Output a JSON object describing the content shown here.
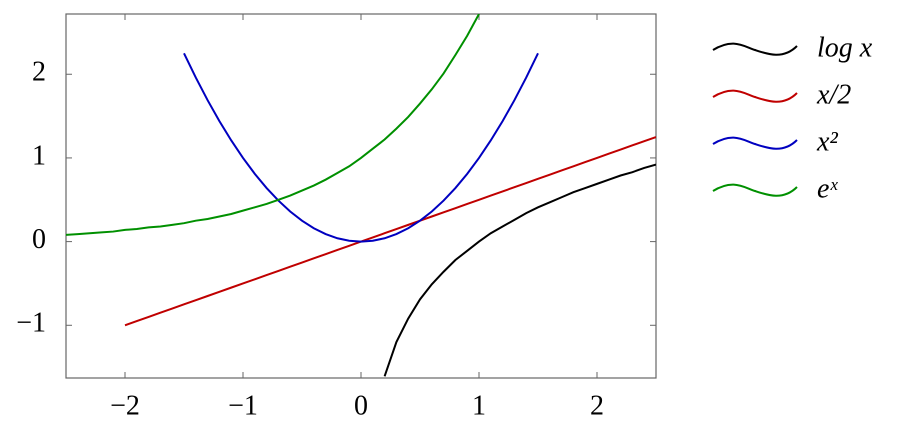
{
  "chart_data": {
    "type": "line",
    "x": [
      -2.5,
      -2.4,
      -2.3,
      -2.2,
      -2.1,
      -2.0,
      -1.9,
      -1.8,
      -1.7,
      -1.6,
      -1.5,
      -1.4,
      -1.3,
      -1.2,
      -1.1,
      -1.0,
      -0.9,
      -0.8,
      -0.7,
      -0.6,
      -0.5,
      -0.4,
      -0.3,
      -0.2,
      -0.1,
      0,
      0.1,
      0.2,
      0.3,
      0.4,
      0.5,
      0.6,
      0.7,
      0.8,
      0.9,
      1.0,
      1.1,
      1.2,
      1.3,
      1.4,
      1.5,
      1.6,
      1.7,
      1.8,
      1.9,
      2.0,
      2.1,
      2.2,
      2.3,
      2.4,
      2.5
    ],
    "series": [
      {
        "name": "log x",
        "color": "#000000",
        "values": [
          null,
          null,
          null,
          null,
          null,
          null,
          null,
          null,
          null,
          null,
          null,
          null,
          null,
          null,
          null,
          null,
          null,
          null,
          null,
          null,
          null,
          null,
          null,
          null,
          null,
          null,
          null,
          -1.61,
          -1.2,
          -0.92,
          -0.69,
          -0.51,
          -0.36,
          -0.22,
          -0.11,
          0,
          0.1,
          0.18,
          0.26,
          0.34,
          0.41,
          0.47,
          0.53,
          0.59,
          0.64,
          0.69,
          0.74,
          0.79,
          0.83,
          0.88,
          0.92
        ]
      },
      {
        "name": "x/2",
        "color": "#c00000",
        "values": [
          null,
          null,
          null,
          null,
          null,
          -1,
          -0.95,
          -0.9,
          -0.85,
          -0.8,
          -0.75,
          -0.7,
          -0.65,
          -0.6,
          -0.55,
          -0.5,
          -0.45,
          -0.4,
          -0.35,
          -0.3,
          -0.25,
          -0.2,
          -0.15,
          -0.1,
          -0.05,
          0,
          0.05,
          0.1,
          0.15,
          0.2,
          0.25,
          0.3,
          0.35,
          0.4,
          0.45,
          0.5,
          0.55,
          0.6,
          0.65,
          0.7,
          0.75,
          0.8,
          0.85,
          0.9,
          0.95,
          1,
          1.05,
          1.1,
          1.15,
          1.2,
          1.25
        ]
      },
      {
        "name": "x²",
        "color": "#0000c0",
        "values": [
          null,
          null,
          null,
          null,
          null,
          null,
          null,
          null,
          null,
          null,
          2.25,
          1.96,
          1.69,
          1.44,
          1.21,
          1,
          0.81,
          0.64,
          0.49,
          0.36,
          0.25,
          0.16,
          0.09,
          0.04,
          0.01,
          0,
          0.01,
          0.04,
          0.09,
          0.16,
          0.25,
          0.36,
          0.49,
          0.64,
          0.81,
          1,
          1.21,
          1.44,
          1.69,
          1.96,
          2.25,
          null,
          null,
          null,
          null,
          null,
          null,
          null,
          null,
          null,
          null
        ]
      },
      {
        "name": "eˣ",
        "color": "#009000",
        "values": [
          0.08,
          0.09,
          0.1,
          0.11,
          0.12,
          0.14,
          0.15,
          0.17,
          0.18,
          0.2,
          0.22,
          0.25,
          0.27,
          0.3,
          0.33,
          0.37,
          0.41,
          0.45,
          0.5,
          0.55,
          0.61,
          0.67,
          0.74,
          0.82,
          0.9,
          1,
          1.11,
          1.22,
          1.35,
          1.49,
          1.65,
          1.82,
          2.01,
          2.23,
          2.46,
          2.72,
          null,
          null,
          null,
          null,
          null,
          null,
          null,
          null,
          null,
          null,
          null,
          null,
          null,
          null,
          null
        ]
      }
    ],
    "xlim": [
      -2.5,
      2.5
    ],
    "ylim": [
      -1.63,
      2.72
    ],
    "xticks": [
      {
        "value": -2,
        "label": "−2"
      },
      {
        "value": -1,
        "label": "−1"
      },
      0,
      1,
      2
    ],
    "yticks": [
      {
        "value": -1,
        "label": "−1"
      },
      0,
      1,
      2
    ],
    "legend": "right"
  }
}
